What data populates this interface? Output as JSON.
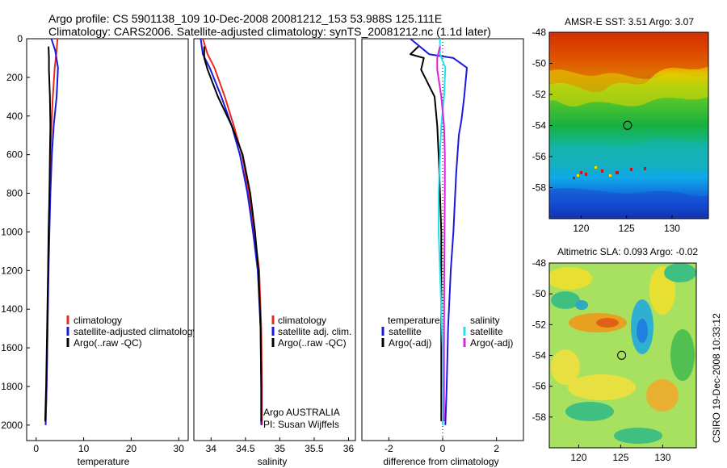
{
  "header": {
    "line1": "Argo profile: CS 5901138_109 10-Dec-2008 20081212_153 53.988S 125.111E",
    "line2": "Climatology: CARS2006. Satellite-adjusted climatology: synTS_20081212.nc (1.1d later)"
  },
  "side_text": "CSIRO 19-Dec-2008 10:33:12",
  "colors": {
    "red": "#e8291c",
    "blue": "#1a1adc",
    "black": "#000000",
    "cyan": "#22e0f0",
    "magenta": "#e020e0"
  },
  "chart_data": [
    {
      "type": "line",
      "panel": "temperature",
      "xlabel": "temperature",
      "xlim": [
        -2,
        32
      ],
      "ylim": [
        2080,
        0
      ],
      "xticks": [
        0,
        10,
        20,
        30
      ],
      "yticks": [
        0,
        200,
        400,
        600,
        800,
        1000,
        1200,
        1400,
        1600,
        1800,
        2000
      ],
      "legend_placement": "lower-right",
      "series": [
        {
          "name": "climatology",
          "color": "#e8291c",
          "x": [
            4.5,
            4.3,
            3.9,
            3.5,
            3.2,
            3.0,
            2.8,
            2.7,
            2.5,
            2.4,
            2.2,
            2.0
          ],
          "y": [
            0,
            60,
            150,
            300,
            450,
            600,
            800,
            1000,
            1200,
            1500,
            1800,
            2000
          ]
        },
        {
          "name": "satellite-adjusted climatology",
          "color": "#1a1adc",
          "x": [
            3.2,
            4.0,
            4.6,
            4.3,
            3.7,
            3.3,
            3.0,
            2.8,
            2.6,
            2.4,
            2.2,
            2.0
          ],
          "y": [
            0,
            60,
            150,
            300,
            450,
            600,
            800,
            1000,
            1200,
            1500,
            1800,
            2000
          ]
        },
        {
          "name": "Argo(..raw -QC)",
          "color": "#000000",
          "x": [
            2.6,
            2.7,
            2.7,
            2.9,
            3.0,
            2.9,
            2.8,
            2.6,
            2.5,
            2.3,
            2.1,
            1.9
          ],
          "y": [
            40,
            100,
            160,
            300,
            450,
            600,
            800,
            1000,
            1200,
            1500,
            1800,
            1980
          ]
        }
      ]
    },
    {
      "type": "line",
      "panel": "salinity",
      "xlabel": "salinity",
      "xlim": [
        33.75,
        36.1
      ],
      "ylim": [
        2080,
        0
      ],
      "xticks": [
        34,
        34.5,
        35,
        35.5,
        36
      ],
      "legend_placement": "lower-right",
      "annotation_lines": [
        "Argo AUSTRALIA",
        "PI: Susan Wijffels"
      ],
      "series": [
        {
          "name": "climatology",
          "color": "#e8291c",
          "x": [
            33.88,
            33.95,
            34.05,
            34.2,
            34.33,
            34.45,
            34.55,
            34.63,
            34.7,
            34.73,
            34.74,
            34.74
          ],
          "y": [
            0,
            80,
            150,
            300,
            450,
            600,
            800,
            1000,
            1200,
            1500,
            1800,
            2000
          ]
        },
        {
          "name": "satellite adj. clim.",
          "color": "#1a1adc",
          "x": [
            33.85,
            33.88,
            33.98,
            34.15,
            34.3,
            34.42,
            34.53,
            34.61,
            34.68,
            34.72,
            34.73,
            34.73
          ],
          "y": [
            0,
            80,
            150,
            300,
            450,
            600,
            800,
            1000,
            1200,
            1500,
            1800,
            2000
          ]
        },
        {
          "name": "Argo(..raw -QC)",
          "color": "#000000",
          "x": [
            33.9,
            33.9,
            33.95,
            34.1,
            34.3,
            34.46,
            34.57,
            34.64,
            34.69,
            34.72,
            34.73,
            34.73
          ],
          "y": [
            40,
            100,
            160,
            300,
            450,
            600,
            800,
            1000,
            1200,
            1500,
            1800,
            1980
          ]
        }
      ]
    },
    {
      "type": "line",
      "panel": "difference",
      "xlabel": "difference from climatology",
      "xlim": [
        -3,
        3
      ],
      "ylim": [
        2080,
        0
      ],
      "xticks": [
        -2,
        0,
        2
      ],
      "legend_headers": [
        "temperature",
        "salinity"
      ],
      "legend_placement": "lower-middle",
      "series": [
        {
          "name": "temperature satellite",
          "color": "#1a1adc",
          "x": [
            -1.2,
            -0.5,
            0.4,
            0.9,
            0.8,
            0.7,
            0.6,
            0.5,
            0.4,
            0.3,
            0.2,
            0.15,
            0.1
          ],
          "y": [
            0,
            80,
            100,
            150,
            300,
            420,
            500,
            700,
            1000,
            1200,
            1500,
            1800,
            2000
          ]
        },
        {
          "name": "temperature Argo(-adj)",
          "color": "#000000",
          "x": [
            -0.9,
            -1.2,
            -0.7,
            -0.8,
            -0.3,
            -0.2,
            -0.15,
            -0.1,
            -0.05,
            -0.05,
            -0.05,
            -0.05
          ],
          "y": [
            40,
            80,
            100,
            160,
            300,
            450,
            600,
            800,
            1000,
            1200,
            1500,
            1980
          ]
        },
        {
          "name": "salinity satellite",
          "color": "#22e0f0",
          "x": [
            -0.1,
            -0.1,
            0.1,
            0.05,
            -0.05,
            -0.1,
            -0.15,
            -0.15,
            -0.1,
            -0.05,
            0.0,
            0.0
          ],
          "y": [
            0,
            80,
            150,
            300,
            450,
            600,
            800,
            1000,
            1200,
            1400,
            1600,
            2000
          ]
        },
        {
          "name": "salinity Argo(-adj)",
          "color": "#e020e0",
          "x": [
            -0.1,
            -0.2,
            -0.2,
            -0.05,
            0.05,
            0.08,
            0.08,
            0.07,
            0.06,
            0.05,
            0.05,
            0.05
          ],
          "y": [
            40,
            100,
            160,
            300,
            450,
            600,
            800,
            1000,
            1200,
            1500,
            1800,
            1980
          ]
        }
      ]
    },
    {
      "type": "heatmap",
      "panel": "sst_map",
      "title": "AMSR-E SST: 3.51 Argo: 3.07",
      "xlim": [
        116.5,
        134
      ],
      "ylim": [
        -60,
        -48
      ],
      "xticks": [
        120,
        125,
        130
      ],
      "yticks": [
        -48,
        -50,
        -52,
        -54,
        -56,
        -58
      ],
      "marker": {
        "lon": 125.111,
        "lat": -53.988
      }
    },
    {
      "type": "heatmap",
      "panel": "sla_map",
      "title": "Altimetric SLA: 0.093 Argo: -0.02",
      "xlim": [
        116.5,
        134
      ],
      "ylim": [
        -60,
        -48
      ],
      "xticks": [
        120,
        125,
        130
      ],
      "yticks": [
        -48,
        -50,
        -52,
        -54,
        -56,
        -58
      ],
      "marker": {
        "lon": 125.111,
        "lat": -53.988
      }
    }
  ]
}
